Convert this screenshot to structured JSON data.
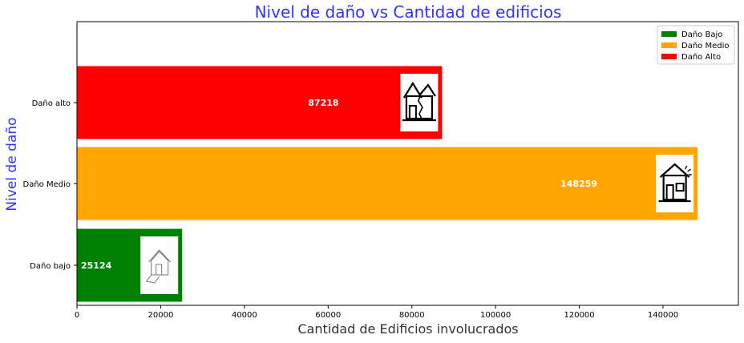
{
  "chart_data": {
    "type": "bar",
    "orientation": "horizontal",
    "title": "Nivel de daño vs Cantidad de edificios",
    "xlabel": "Cantidad de Edificios involucrados",
    "ylabel": "Nivel de daño",
    "categories": [
      "Daño bajo",
      "Daño Medio",
      "Daño alto"
    ],
    "values": [
      25124,
      148259,
      87218
    ],
    "data_labels": [
      "25124",
      "148259",
      "87218"
    ],
    "bar_colors": [
      "#008000",
      "#ffa500",
      "#ff0000"
    ],
    "xlim": [
      0,
      158000
    ],
    "xticks": [
      0,
      20000,
      40000,
      60000,
      80000,
      100000,
      120000,
      140000
    ],
    "xtick_labels": [
      "0",
      "20000",
      "40000",
      "60000",
      "80000",
      "100000",
      "120000",
      "140000"
    ],
    "grid": false,
    "legend_position": "top-right",
    "legend": [
      {
        "label": "Daño Bajo",
        "color": "#008000"
      },
      {
        "label": "Daño Medio",
        "color": "#ffa500"
      },
      {
        "label": "Daño Alto",
        "color": "#ff0000"
      }
    ],
    "bar_icons": [
      "intact-house-icon",
      "tilted-house-icon",
      "cracked-house-icon"
    ],
    "title_color": "#3333ff",
    "ylabel_color": "#3333ff"
  }
}
